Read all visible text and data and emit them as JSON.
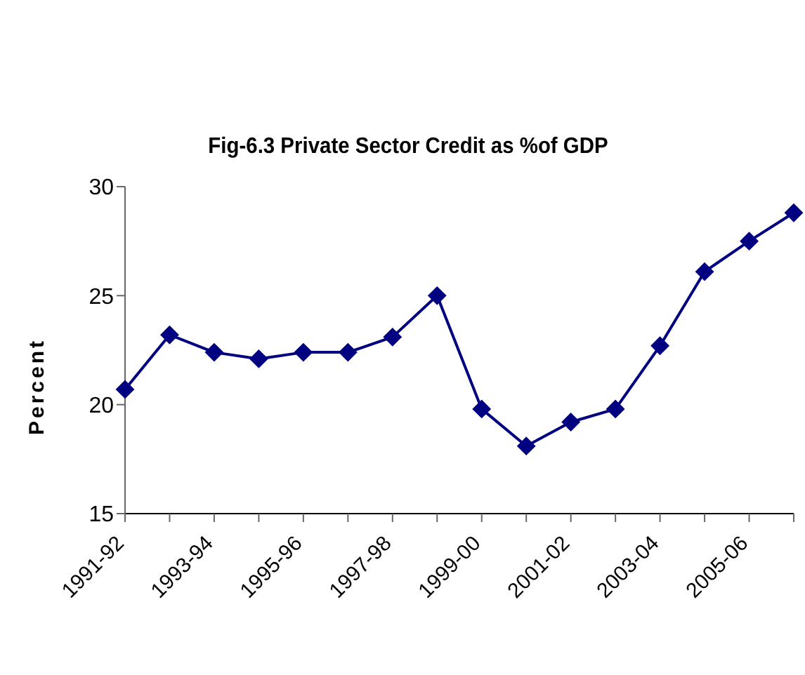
{
  "chart_data": {
    "type": "line",
    "title": "Fig-6.3 Private Sector Credit as %of GDP",
    "ylabel": "Percent",
    "categories": [
      "1991-92",
      null,
      "1993-94",
      null,
      "1995-96",
      null,
      "1997-98",
      null,
      "1999-00",
      null,
      "2001-02",
      null,
      "2003-04",
      null,
      "2005-06",
      null
    ],
    "series": [
      {
        "color": "#000080",
        "values": [
          20.7,
          23.2,
          22.4,
          22.1,
          22.4,
          22.4,
          23.1,
          25.0,
          19.8,
          18.1,
          19.2,
          19.8,
          22.7,
          26.1,
          27.5,
          28.8
        ]
      }
    ],
    "ylim": [
      15,
      30
    ],
    "yticks": [
      15,
      20,
      25,
      30
    ],
    "grid": false,
    "legend": false,
    "marker": "diamond",
    "line_style": "solid"
  }
}
